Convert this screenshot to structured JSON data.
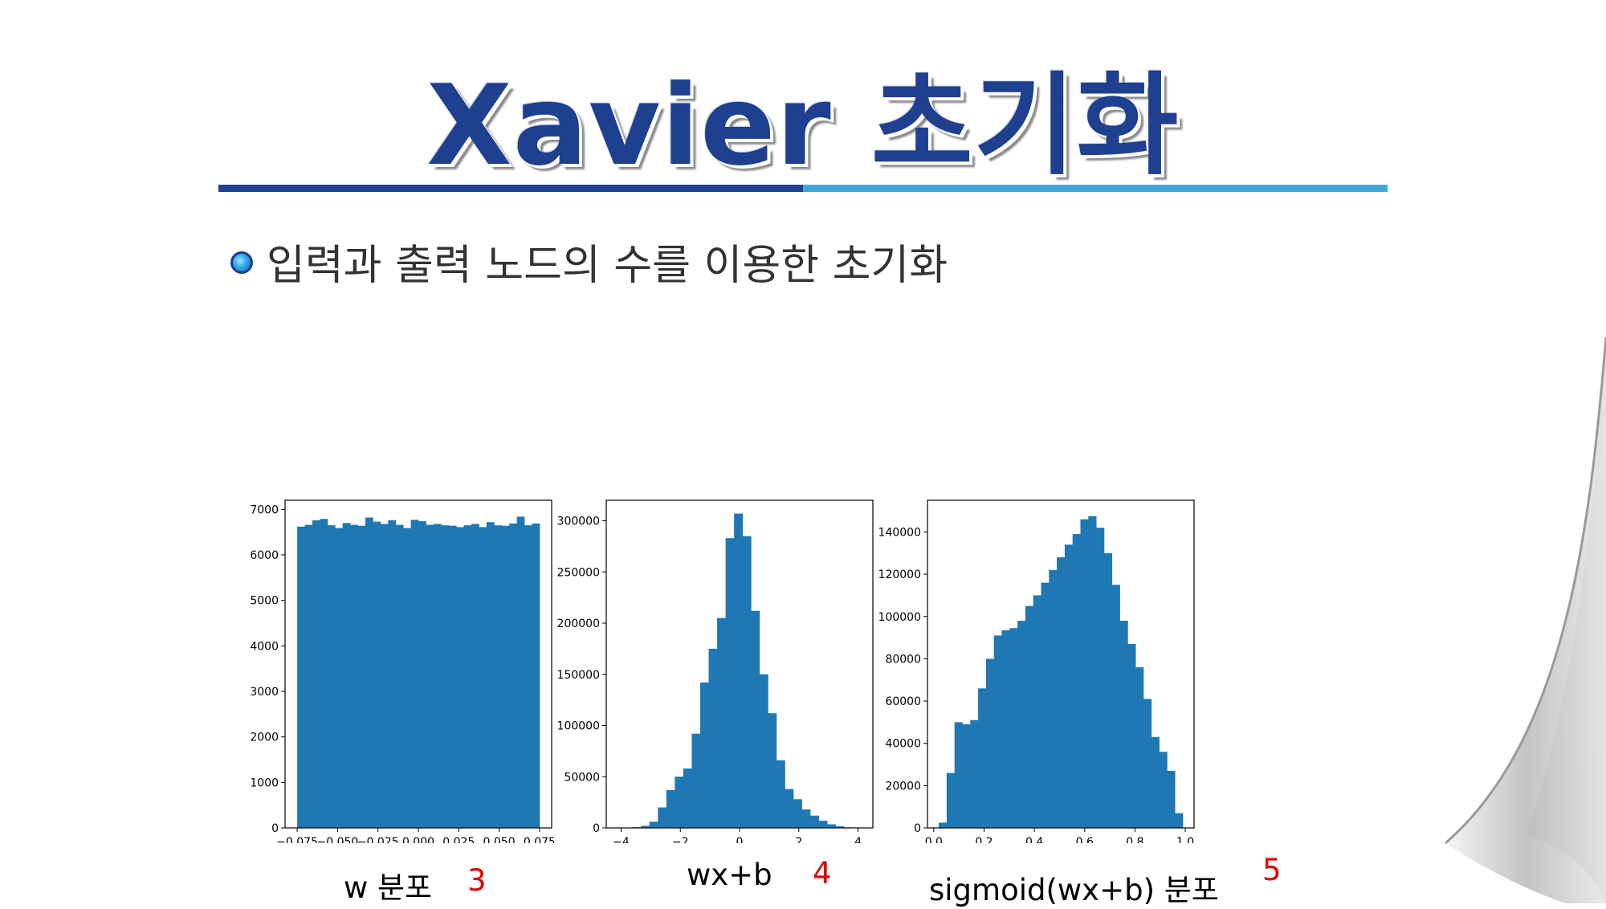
{
  "slide": {
    "title": "Xavier 초기화",
    "bullet": "입력과 출력 노드의 수를 이용한 초기화"
  },
  "captions": [
    {
      "label": "w 분포",
      "number": "3"
    },
    {
      "label": "wx+b",
      "number": "4"
    },
    {
      "label": "sigmoid(wx+b) 분포",
      "number": "5"
    }
  ],
  "colors": {
    "title": "#1f3f8f",
    "bar": "#1f77b4",
    "accent_light": "#3ea7d7",
    "number": "#e00000"
  },
  "chart_data": [
    {
      "type": "bar",
      "title": "",
      "xlabel": "",
      "ylabel": "",
      "xlim": [
        -0.0825,
        0.0825
      ],
      "ylim": [
        0,
        7200
      ],
      "xticks": [
        -0.075,
        -0.05,
        -0.025,
        0.0,
        0.025,
        0.05,
        0.075
      ],
      "xtick_labels": [
        "−0.075",
        "−0.050",
        "−0.025",
        "0.000",
        "0.025",
        "0.050",
        "0.075"
      ],
      "yticks": [
        0,
        1000,
        2000,
        3000,
        4000,
        5000,
        6000,
        7000
      ],
      "ytick_labels": [
        "0",
        "1000",
        "2000",
        "3000",
        "4000",
        "5000",
        "6000",
        "7000"
      ],
      "bin_range": [
        -0.075,
        0.075
      ],
      "values": [
        6620,
        6660,
        6760,
        6790,
        6650,
        6590,
        6700,
        6660,
        6640,
        6820,
        6730,
        6680,
        6760,
        6660,
        6590,
        6770,
        6740,
        6660,
        6680,
        6650,
        6640,
        6610,
        6650,
        6680,
        6610,
        6720,
        6650,
        6640,
        6690,
        6840,
        6650,
        6690
      ]
    },
    {
      "type": "bar",
      "title": "",
      "xlabel": "",
      "ylabel": "",
      "xlim": [
        -4.5,
        4.5
      ],
      "ylim": [
        0,
        320000
      ],
      "xticks": [
        -4,
        -2,
        0,
        2,
        4
      ],
      "xtick_labels": [
        "−4",
        "−2",
        "0",
        "2",
        "4"
      ],
      "yticks": [
        0,
        50000,
        100000,
        150000,
        200000,
        250000,
        300000
      ],
      "ytick_labels": [
        "0",
        "50000",
        "100000",
        "150000",
        "200000",
        "250000",
        "300000"
      ],
      "bin_range": [
        -3.9,
        4.1
      ],
      "values": [
        200,
        700,
        2000,
        6000,
        20000,
        37000,
        50000,
        58000,
        92000,
        142000,
        175000,
        205000,
        283000,
        307000,
        285000,
        212000,
        150000,
        112000,
        66000,
        38000,
        28000,
        18000,
        12000,
        7000,
        3500,
        1500,
        500,
        200
      ]
    },
    {
      "type": "bar",
      "title": "",
      "xlabel": "",
      "ylabel": "",
      "xlim": [
        -0.025,
        1.035
      ],
      "ylim": [
        0,
        155000
      ],
      "xticks": [
        0.0,
        0.2,
        0.4,
        0.6,
        0.8,
        1.0
      ],
      "xtick_labels": [
        "0.0",
        "0.2",
        "0.4",
        "0.6",
        "0.8",
        "1.0"
      ],
      "yticks": [
        0,
        20000,
        40000,
        60000,
        80000,
        100000,
        120000,
        140000
      ],
      "ytick_labels": [
        "0",
        "20000",
        "40000",
        "60000",
        "80000",
        "100000",
        "120000",
        "140000"
      ],
      "bin_range": [
        0.02,
        0.99
      ],
      "values": [
        2500,
        26000,
        50000,
        49000,
        51000,
        66000,
        80000,
        91000,
        93500,
        94500,
        98000,
        105000,
        110000,
        116000,
        122000,
        128000,
        134000,
        139000,
        146000,
        147500,
        142000,
        130000,
        115000,
        98000,
        87000,
        76000,
        61000,
        43000,
        36000,
        27000,
        7000
      ]
    }
  ]
}
